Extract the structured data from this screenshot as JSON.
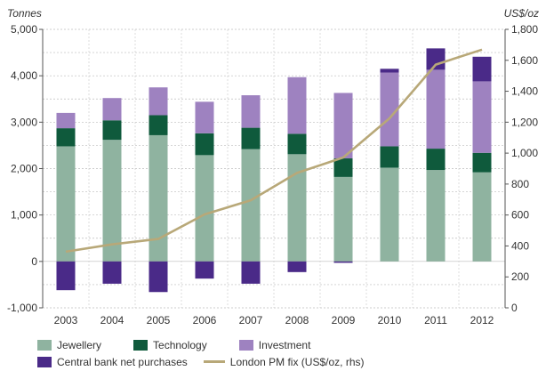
{
  "chart_data": {
    "type": "bar",
    "stacked": true,
    "left_unit": "Tonnes",
    "right_unit": "US$/oz",
    "categories": [
      "2003",
      "2004",
      "2005",
      "2006",
      "2007",
      "2008",
      "2009",
      "2010",
      "2011",
      "2012"
    ],
    "ylim": [
      -1000,
      5000
    ],
    "y2lim": [
      0,
      1800
    ],
    "yticks": [
      "-1,000",
      "0",
      "1,000",
      "2,000",
      "3,000",
      "4,000",
      "5,000"
    ],
    "y2ticks": [
      "0",
      "200",
      "400",
      "600",
      "800",
      "1,000",
      "1,200",
      "1,400",
      "1,600",
      "1,800"
    ],
    "grid": true,
    "series": [
      {
        "name": "Jewellery",
        "color": "#8fb3a0",
        "values": [
          2480,
          2620,
          2720,
          2290,
          2420,
          2310,
          1820,
          2020,
          1970,
          1920
        ]
      },
      {
        "name": "Technology",
        "color": "#0f5a3c",
        "values": [
          390,
          420,
          430,
          470,
          460,
          440,
          400,
          460,
          460,
          420
        ]
      },
      {
        "name": "Investment",
        "color": "#9e82c0",
        "values": [
          330,
          480,
          600,
          680,
          700,
          1220,
          1410,
          1590,
          1700,
          1540
        ]
      },
      {
        "name": "Central bank net purchases",
        "color": "#4a2a88",
        "values": [
          -620,
          -480,
          -660,
          -370,
          -480,
          -230,
          -30,
          80,
          460,
          530
        ]
      }
    ],
    "line_series": {
      "name": "London PM fix (US$/oz, rhs)",
      "color": "#b8a878",
      "axis": "right",
      "values": [
        363,
        410,
        445,
        604,
        695,
        872,
        972,
        1225,
        1572,
        1669
      ]
    },
    "legend": {
      "rows": [
        [
          "Jewellery",
          "Technology",
          "Investment"
        ],
        [
          "Central bank net purchases",
          "London PM fix (US$/oz, rhs)"
        ]
      ],
      "placement": "bottom"
    }
  }
}
